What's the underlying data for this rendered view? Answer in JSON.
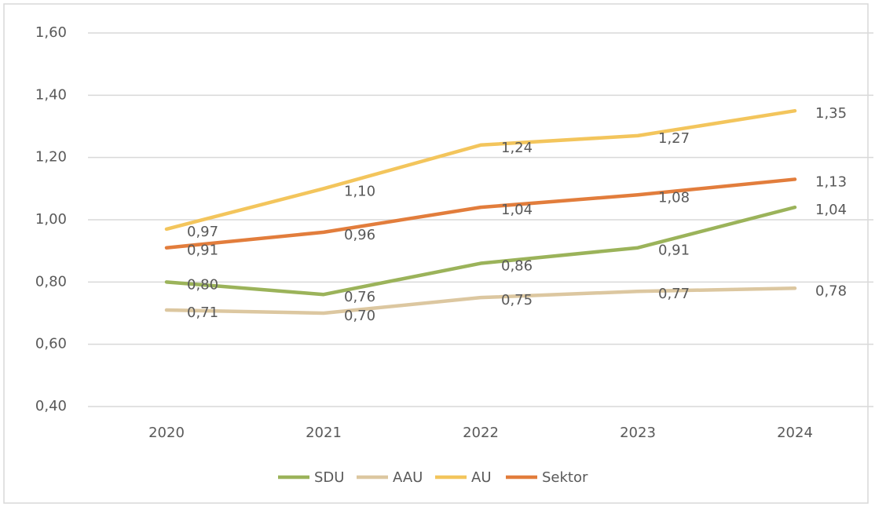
{
  "chart_data": {
    "type": "line",
    "categories": [
      "2020",
      "2021",
      "2022",
      "2023",
      "2024"
    ],
    "series": [
      {
        "name": "SDU",
        "color": "#9bb35a",
        "values": [
          0.8,
          0.76,
          0.86,
          0.91,
          1.04
        ],
        "value_labels": [
          "0,80",
          "0,76",
          "0,86",
          "0,91",
          "1,04"
        ]
      },
      {
        "name": "AAU",
        "color": "#dcc7a0",
        "values": [
          0.71,
          0.7,
          0.75,
          0.77,
          0.78
        ],
        "value_labels": [
          "0,71",
          "0,70",
          "0,75",
          "0,77",
          "0,78"
        ]
      },
      {
        "name": "AU",
        "color": "#f3c55c",
        "values": [
          0.97,
          1.1,
          1.24,
          1.27,
          1.35
        ],
        "value_labels": [
          "0,97",
          "1,10",
          "1,24",
          "1,27",
          "1,35"
        ]
      },
      {
        "name": "Sektor",
        "color": "#e27d3c",
        "values": [
          0.91,
          0.96,
          1.04,
          1.08,
          1.13
        ],
        "value_labels": [
          "0,91",
          "0,96",
          "1,04",
          "1,08",
          "1,13"
        ]
      }
    ],
    "ylim": [
      0.4,
      1.6
    ],
    "yticks": [
      {
        "value": 0.4,
        "label": "0,40"
      },
      {
        "value": 0.6,
        "label": "0,60"
      },
      {
        "value": 0.8,
        "label": "0,80"
      },
      {
        "value": 1.0,
        "label": "1,00"
      },
      {
        "value": 1.2,
        "label": "1,20"
      },
      {
        "value": 1.4,
        "label": "1,40"
      },
      {
        "value": 1.6,
        "label": "1,60"
      }
    ],
    "grid": true,
    "legend": "bottom"
  }
}
